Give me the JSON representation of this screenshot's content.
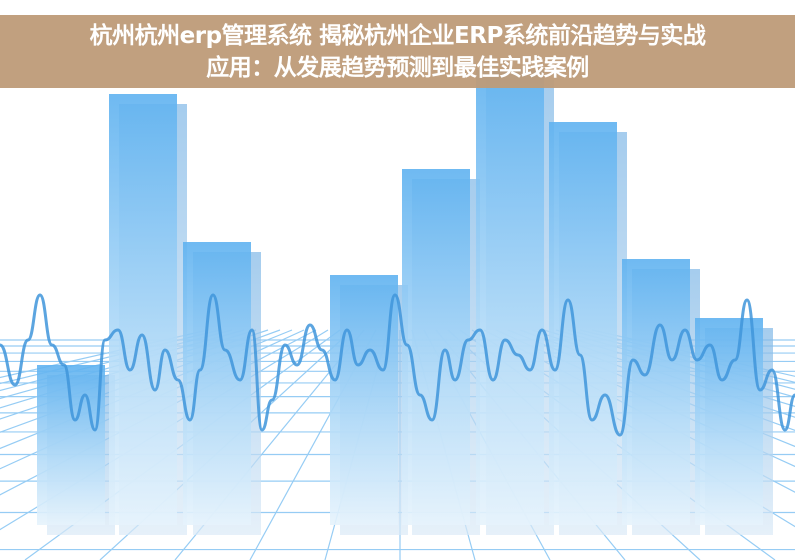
{
  "banner": {
    "title_line1": "杭州杭州erp管理系统 揭秘杭州企业ERP系统前沿趋势与实战",
    "title_line2": "应用：从发展趋势预测到最佳实践案例",
    "background_color": "#c19e7c"
  },
  "illustration": {
    "description_type": "decorative-bar-chart-with-waveform",
    "bar_color": "#6bb8f0",
    "wave_color": "#4a9ee0",
    "grid_color": "#7cc0f2"
  }
}
